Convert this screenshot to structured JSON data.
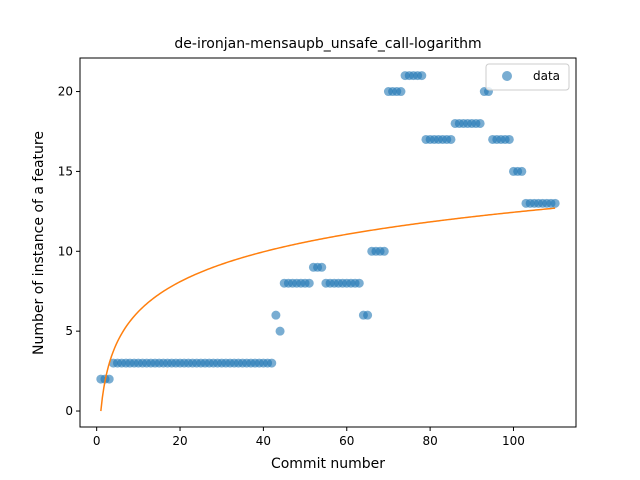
{
  "colors": {
    "data_points": "#1f77b4",
    "fit_line": "#ff7f0e"
  },
  "chart_data": {
    "type": "scatter",
    "title": "de-ironjan-mensaupb_unsafe_call-logarithm",
    "xlabel": "Commit number",
    "ylabel": "Number of instance of a feature",
    "xlim": [
      -4,
      115
    ],
    "ylim": [
      -1,
      22.1
    ],
    "xticks": [
      0,
      20,
      40,
      60,
      80,
      100
    ],
    "yticks": [
      0,
      5,
      10,
      15,
      20
    ],
    "grid": false,
    "legend": {
      "placement": "top-right",
      "entries": [
        "data"
      ]
    },
    "series": [
      {
        "name": "data",
        "kind": "scatter",
        "x": [
          1,
          2,
          3,
          4,
          5,
          6,
          7,
          8,
          9,
          10,
          11,
          12,
          13,
          14,
          15,
          16,
          17,
          18,
          19,
          20,
          21,
          22,
          23,
          24,
          25,
          26,
          27,
          28,
          29,
          30,
          31,
          32,
          33,
          34,
          35,
          36,
          37,
          38,
          39,
          40,
          41,
          42,
          43,
          44,
          45,
          46,
          47,
          48,
          49,
          50,
          51,
          52,
          53,
          54,
          55,
          56,
          57,
          58,
          59,
          60,
          61,
          62,
          63,
          64,
          65,
          66,
          67,
          68,
          69,
          70,
          71,
          72,
          73,
          74,
          75,
          76,
          77,
          78,
          79,
          80,
          81,
          82,
          83,
          84,
          85,
          86,
          87,
          88,
          89,
          90,
          91,
          92,
          93,
          94,
          95,
          96,
          97,
          98,
          99,
          100,
          101,
          102,
          103,
          104,
          105,
          106,
          107,
          108,
          109,
          110
        ],
        "y": [
          2,
          2,
          2,
          3,
          3,
          3,
          3,
          3,
          3,
          3,
          3,
          3,
          3,
          3,
          3,
          3,
          3,
          3,
          3,
          3,
          3,
          3,
          3,
          3,
          3,
          3,
          3,
          3,
          3,
          3,
          3,
          3,
          3,
          3,
          3,
          3,
          3,
          3,
          3,
          3,
          3,
          3,
          6,
          5,
          8,
          8,
          8,
          8,
          8,
          8,
          8,
          9,
          9,
          9,
          8,
          8,
          8,
          8,
          8,
          8,
          8,
          8,
          8,
          6,
          6,
          10,
          10,
          10,
          10,
          20,
          20,
          20,
          20,
          21,
          21,
          21,
          21,
          21,
          17,
          17,
          17,
          17,
          17,
          17,
          17,
          18,
          18,
          18,
          18,
          18,
          18,
          18,
          20,
          20,
          17,
          17,
          17,
          17,
          17,
          15,
          15,
          15,
          13,
          13,
          13,
          13,
          13,
          13,
          13,
          13
        ]
      },
      {
        "name": "",
        "kind": "line",
        "model": "logarithm",
        "x_range": [
          1,
          110
        ],
        "y_at_x_min": 0.0,
        "y_at_x_max": 12.7
      }
    ]
  }
}
